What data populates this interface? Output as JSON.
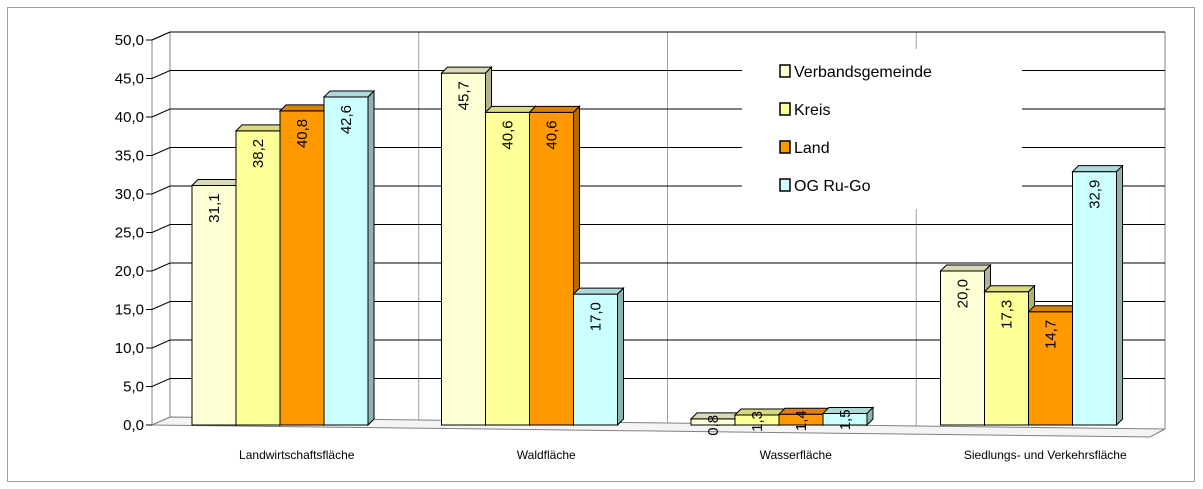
{
  "chart_data": {
    "type": "bar",
    "categories": [
      "Landwirtschaftsfläche",
      "Waldfläche",
      "Wasserfläche",
      "Siedlungs- und Verkehrsfläche"
    ],
    "series": [
      {
        "name": "Verbandsgemeinde",
        "values": [
          31.1,
          45.7,
          0.8,
          20.0
        ],
        "color": "#ffffd6"
      },
      {
        "name": "Kreis",
        "values": [
          38.2,
          40.6,
          1.3,
          17.3
        ],
        "color": "#ffff99"
      },
      {
        "name": "Land",
        "values": [
          40.8,
          40.6,
          1.4,
          14.7
        ],
        "color": "#ff9900"
      },
      {
        "name": "OG Ru-Go",
        "values": [
          42.6,
          17.0,
          1.5,
          32.9
        ],
        "color": "#ccffff"
      }
    ],
    "value_labels": [
      [
        "31,1",
        "45,7",
        "0,8",
        "20,0"
      ],
      [
        "38,2",
        "40,6",
        "1,3",
        "17,3"
      ],
      [
        "40,8",
        "40,6",
        "1,4",
        "14,7"
      ],
      [
        "42,6",
        "17,0",
        "1,5",
        "32,9"
      ]
    ],
    "y_ticks": [
      "0,0",
      "5,0",
      "10,0",
      "15,0",
      "20,0",
      "25,0",
      "30,0",
      "35,0",
      "40,0",
      "45,0",
      "50,0"
    ],
    "ylim": [
      0,
      50
    ],
    "title": "",
    "xlabel": "",
    "ylabel": "",
    "grid": true,
    "legend_position": "top-right",
    "style": "3d-clustered-column"
  }
}
